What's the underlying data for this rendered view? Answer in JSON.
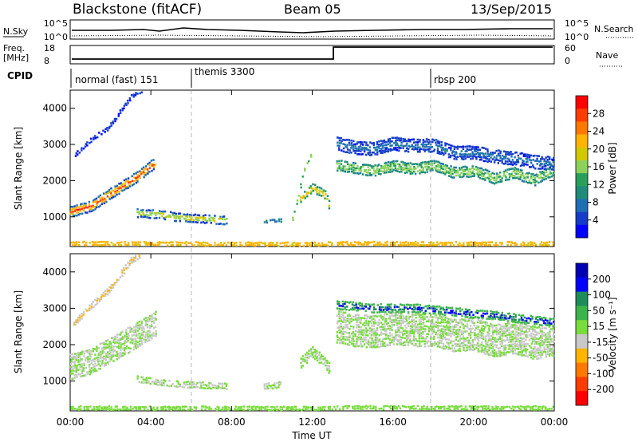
{
  "header": {
    "station": "Blackstone (fitACF)",
    "beam": "Beam 05",
    "date": "13/Sep/2015"
  },
  "top_panels": {
    "nsky_label": "N.Sky",
    "nsky_ticks": [
      "10^5",
      "10^0"
    ],
    "nsearch_label": "N.Search",
    "nsearch_ticks": [
      "10^5",
      "10^0"
    ],
    "freq_label": "Freq.",
    "freq_unit": "[MHz]",
    "freq_ticks": [
      "18",
      "8"
    ],
    "nave_label": "Nave",
    "nave_ticks": [
      "60",
      "0"
    ],
    "cpid_label": "CPID",
    "cpid_segments": [
      "normal (fast) 151",
      "themis 3300",
      "rbsp 200"
    ]
  },
  "x_axis": {
    "label": "Time UT",
    "ticks": [
      "00:00",
      "04:00",
      "08:00",
      "12:00",
      "16:00",
      "20:00",
      "00:00"
    ]
  },
  "chart_data": [
    {
      "type": "heatmap",
      "title": "",
      "xlabel": "Time UT",
      "ylabel": "Slant Range [km]",
      "xlim": [
        0,
        24
      ],
      "ylim": [
        180,
        4500
      ],
      "y_ticks": [
        1000,
        2000,
        3000,
        4000
      ],
      "colorbar": {
        "label": "Power [dB]",
        "ticks": [
          "28",
          "24",
          "20",
          "16",
          "12",
          "8",
          "4"
        ],
        "colors": [
          "#ff0000",
          "#ff3c00",
          "#ff7800",
          "#ffb400",
          "#d2c800",
          "#8cd25a",
          "#28a05a",
          "#1e8c78",
          "#1e6eb4",
          "#143cc8",
          "#0000ff"
        ],
        "range": [
          0,
          30
        ]
      },
      "bands": [
        {
          "points": [
            [
              0,
              1150,
              1
            ],
            [
              1,
              1300,
              1
            ],
            [
              2,
              1650,
              1
            ],
            [
              3.4,
              2150,
              1
            ],
            [
              4.3,
              2550,
              1
            ]
          ],
          "thickness": 300,
          "values": [
            26,
            20,
            12,
            6
          ]
        },
        {
          "points": [
            [
              0.15,
              2650,
              1
            ],
            [
              1,
              3100,
              1
            ],
            [
              1.9,
              3450,
              1
            ],
            [
              3,
              4300,
              1
            ],
            [
              3.6,
              4500,
              1
            ]
          ],
          "thickness": 160,
          "values": [
            8,
            3
          ]
        },
        {
          "points": [
            [
              3.3,
              1100,
              1
            ],
            [
              4.4,
              1060,
              1
            ],
            [
              5.5,
              970,
              1
            ],
            [
              7.8,
              900,
              1
            ]
          ],
          "thickness": 260,
          "values": [
            16,
            10,
            5
          ]
        },
        {
          "points": [
            [
              9.6,
              850,
              1
            ],
            [
              10.5,
              900,
              1
            ]
          ],
          "thickness": 160,
          "values": [
            12,
            8
          ]
        },
        {
          "points": [
            [
              11.4,
              1500,
              1
            ],
            [
              12,
              1800,
              1
            ],
            [
              12.6,
              1600,
              1
            ],
            [
              12.9,
              1200,
              1
            ]
          ],
          "thickness": 260,
          "values": [
            18,
            10
          ]
        },
        {
          "points": [
            [
              10.9,
              700,
              1
            ],
            [
              11.2,
              1400,
              1
            ],
            [
              11.6,
              2300,
              1
            ],
            [
              12,
              2800,
              1
            ]
          ],
          "thickness": 140,
          "values": [
            14
          ]
        },
        {
          "points": [
            [
              13.2,
              2400,
              1
            ],
            [
              14,
              2350,
              1
            ],
            [
              15,
              2250,
              1
            ],
            [
              16,
              2400,
              1
            ],
            [
              17,
              2300,
              1
            ],
            [
              18,
              2400,
              1
            ],
            [
              19,
              2200,
              1
            ],
            [
              20,
              2250,
              1
            ],
            [
              21,
              2050,
              1
            ],
            [
              22,
              2200,
              1
            ],
            [
              23,
              2000,
              1
            ],
            [
              24,
              2300,
              1
            ]
          ],
          "thickness": 350,
          "values": [
            14,
            9
          ]
        },
        {
          "points": [
            [
              13.2,
              3000,
              1
            ],
            [
              14,
              2900,
              1
            ],
            [
              15,
              2850,
              1
            ],
            [
              16,
              3000,
              1
            ],
            [
              17,
              2950,
              1
            ],
            [
              18,
              2950,
              1
            ],
            [
              19,
              2750,
              1
            ],
            [
              20,
              2750,
              1
            ],
            [
              21,
              2650,
              1
            ],
            [
              22,
              2600,
              1
            ],
            [
              23,
              2500,
              1
            ],
            [
              24,
              2450,
              1
            ]
          ],
          "thickness": 420,
          "values": [
            7,
            4
          ]
        },
        {
          "points": [
            [
              0,
              270,
              1
            ],
            [
              12,
              250,
              1
            ],
            [
              13.5,
              270,
              1
            ],
            [
              24,
              260,
              1
            ]
          ],
          "thickness": 110,
          "values": [
            8,
            20
          ]
        }
      ]
    },
    {
      "type": "heatmap",
      "title": "",
      "xlabel": "Time UT",
      "ylabel": "Slant Range [km]",
      "xlim": [
        0,
        24
      ],
      "ylim": [
        180,
        4500
      ],
      "y_ticks": [
        1000,
        2000,
        3000,
        4000
      ],
      "colorbar": {
        "label": "Velocity [m s⁻¹]",
        "ticks": [
          "200",
          "100",
          "50",
          "15",
          "-15",
          "-50",
          "-100",
          "-200"
        ],
        "colors": [
          "#0000b4",
          "#0000ff",
          "#1e8c5a",
          "#3cb44b",
          "#78dc3c",
          "#c8c8c8",
          "#ffb400",
          "#ff7800",
          "#ff3c00",
          "#ff0000"
        ],
        "range": [
          -250,
          250
        ]
      },
      "bands": [
        {
          "points": [
            [
              0,
              1400,
              1
            ],
            [
              1,
              1550,
              1
            ],
            [
              2,
              1850,
              1
            ],
            [
              3.4,
              2300,
              1
            ],
            [
              4.3,
              2600,
              1
            ]
          ],
          "thickness": 700,
          "values": [
            0
          ]
        },
        {
          "points": [
            [
              0.15,
              2550,
              1
            ],
            [
              1,
              3050,
              1
            ],
            [
              1.9,
              3500,
              1
            ],
            [
              3,
              4300,
              1
            ],
            [
              3.6,
              4500,
              1
            ]
          ],
          "thickness": 200,
          "values": [
            -80,
            -40
          ]
        },
        {
          "points": [
            [
              3.3,
              1050,
              1
            ],
            [
              4.4,
              950,
              1
            ],
            [
              5.5,
              900,
              1
            ],
            [
              7.8,
              850,
              1
            ]
          ],
          "thickness": 200,
          "values": [
            0
          ]
        },
        {
          "points": [
            [
              9.6,
              850,
              1
            ],
            [
              10.5,
              900,
              1
            ]
          ],
          "thickness": 200,
          "values": [
            0
          ]
        },
        {
          "points": [
            [
              11.4,
              1500,
              1
            ],
            [
              12,
              1800,
              1
            ],
            [
              12.6,
              1500,
              1
            ],
            [
              12.9,
              1300,
              1
            ]
          ],
          "thickness": 300,
          "values": [
            0,
            35
          ]
        },
        {
          "points": [
            [
              13.2,
              2500,
              1
            ],
            [
              14,
              2400,
              1
            ],
            [
              15,
              2350,
              1
            ],
            [
              16,
              2450,
              1
            ],
            [
              17,
              2400,
              1
            ],
            [
              18,
              2400,
              1
            ],
            [
              19,
              2250,
              1
            ],
            [
              20,
              2300,
              1
            ],
            [
              21,
              2100,
              1
            ],
            [
              22,
              2200,
              1
            ],
            [
              23,
              2050,
              1
            ],
            [
              24,
              2150,
              1
            ]
          ],
          "thickness": 900,
          "values": [
            0
          ]
        },
        {
          "points": [
            [
              13.2,
              3100,
              1
            ],
            [
              15,
              3000,
              1
            ],
            [
              17,
              3000,
              1
            ],
            [
              19,
              2900,
              1
            ],
            [
              21,
              2800,
              1
            ],
            [
              24,
              2600,
              1
            ]
          ],
          "thickness": 250,
          "values": [
            150,
            -150,
            80
          ]
        },
        {
          "points": [
            [
              0,
              260,
              1
            ],
            [
              12,
              250,
              1
            ],
            [
              13.5,
              270,
              1
            ],
            [
              24,
              260,
              1
            ]
          ],
          "thickness": 120,
          "values": [
            30,
            40,
            -40
          ]
        }
      ]
    }
  ]
}
